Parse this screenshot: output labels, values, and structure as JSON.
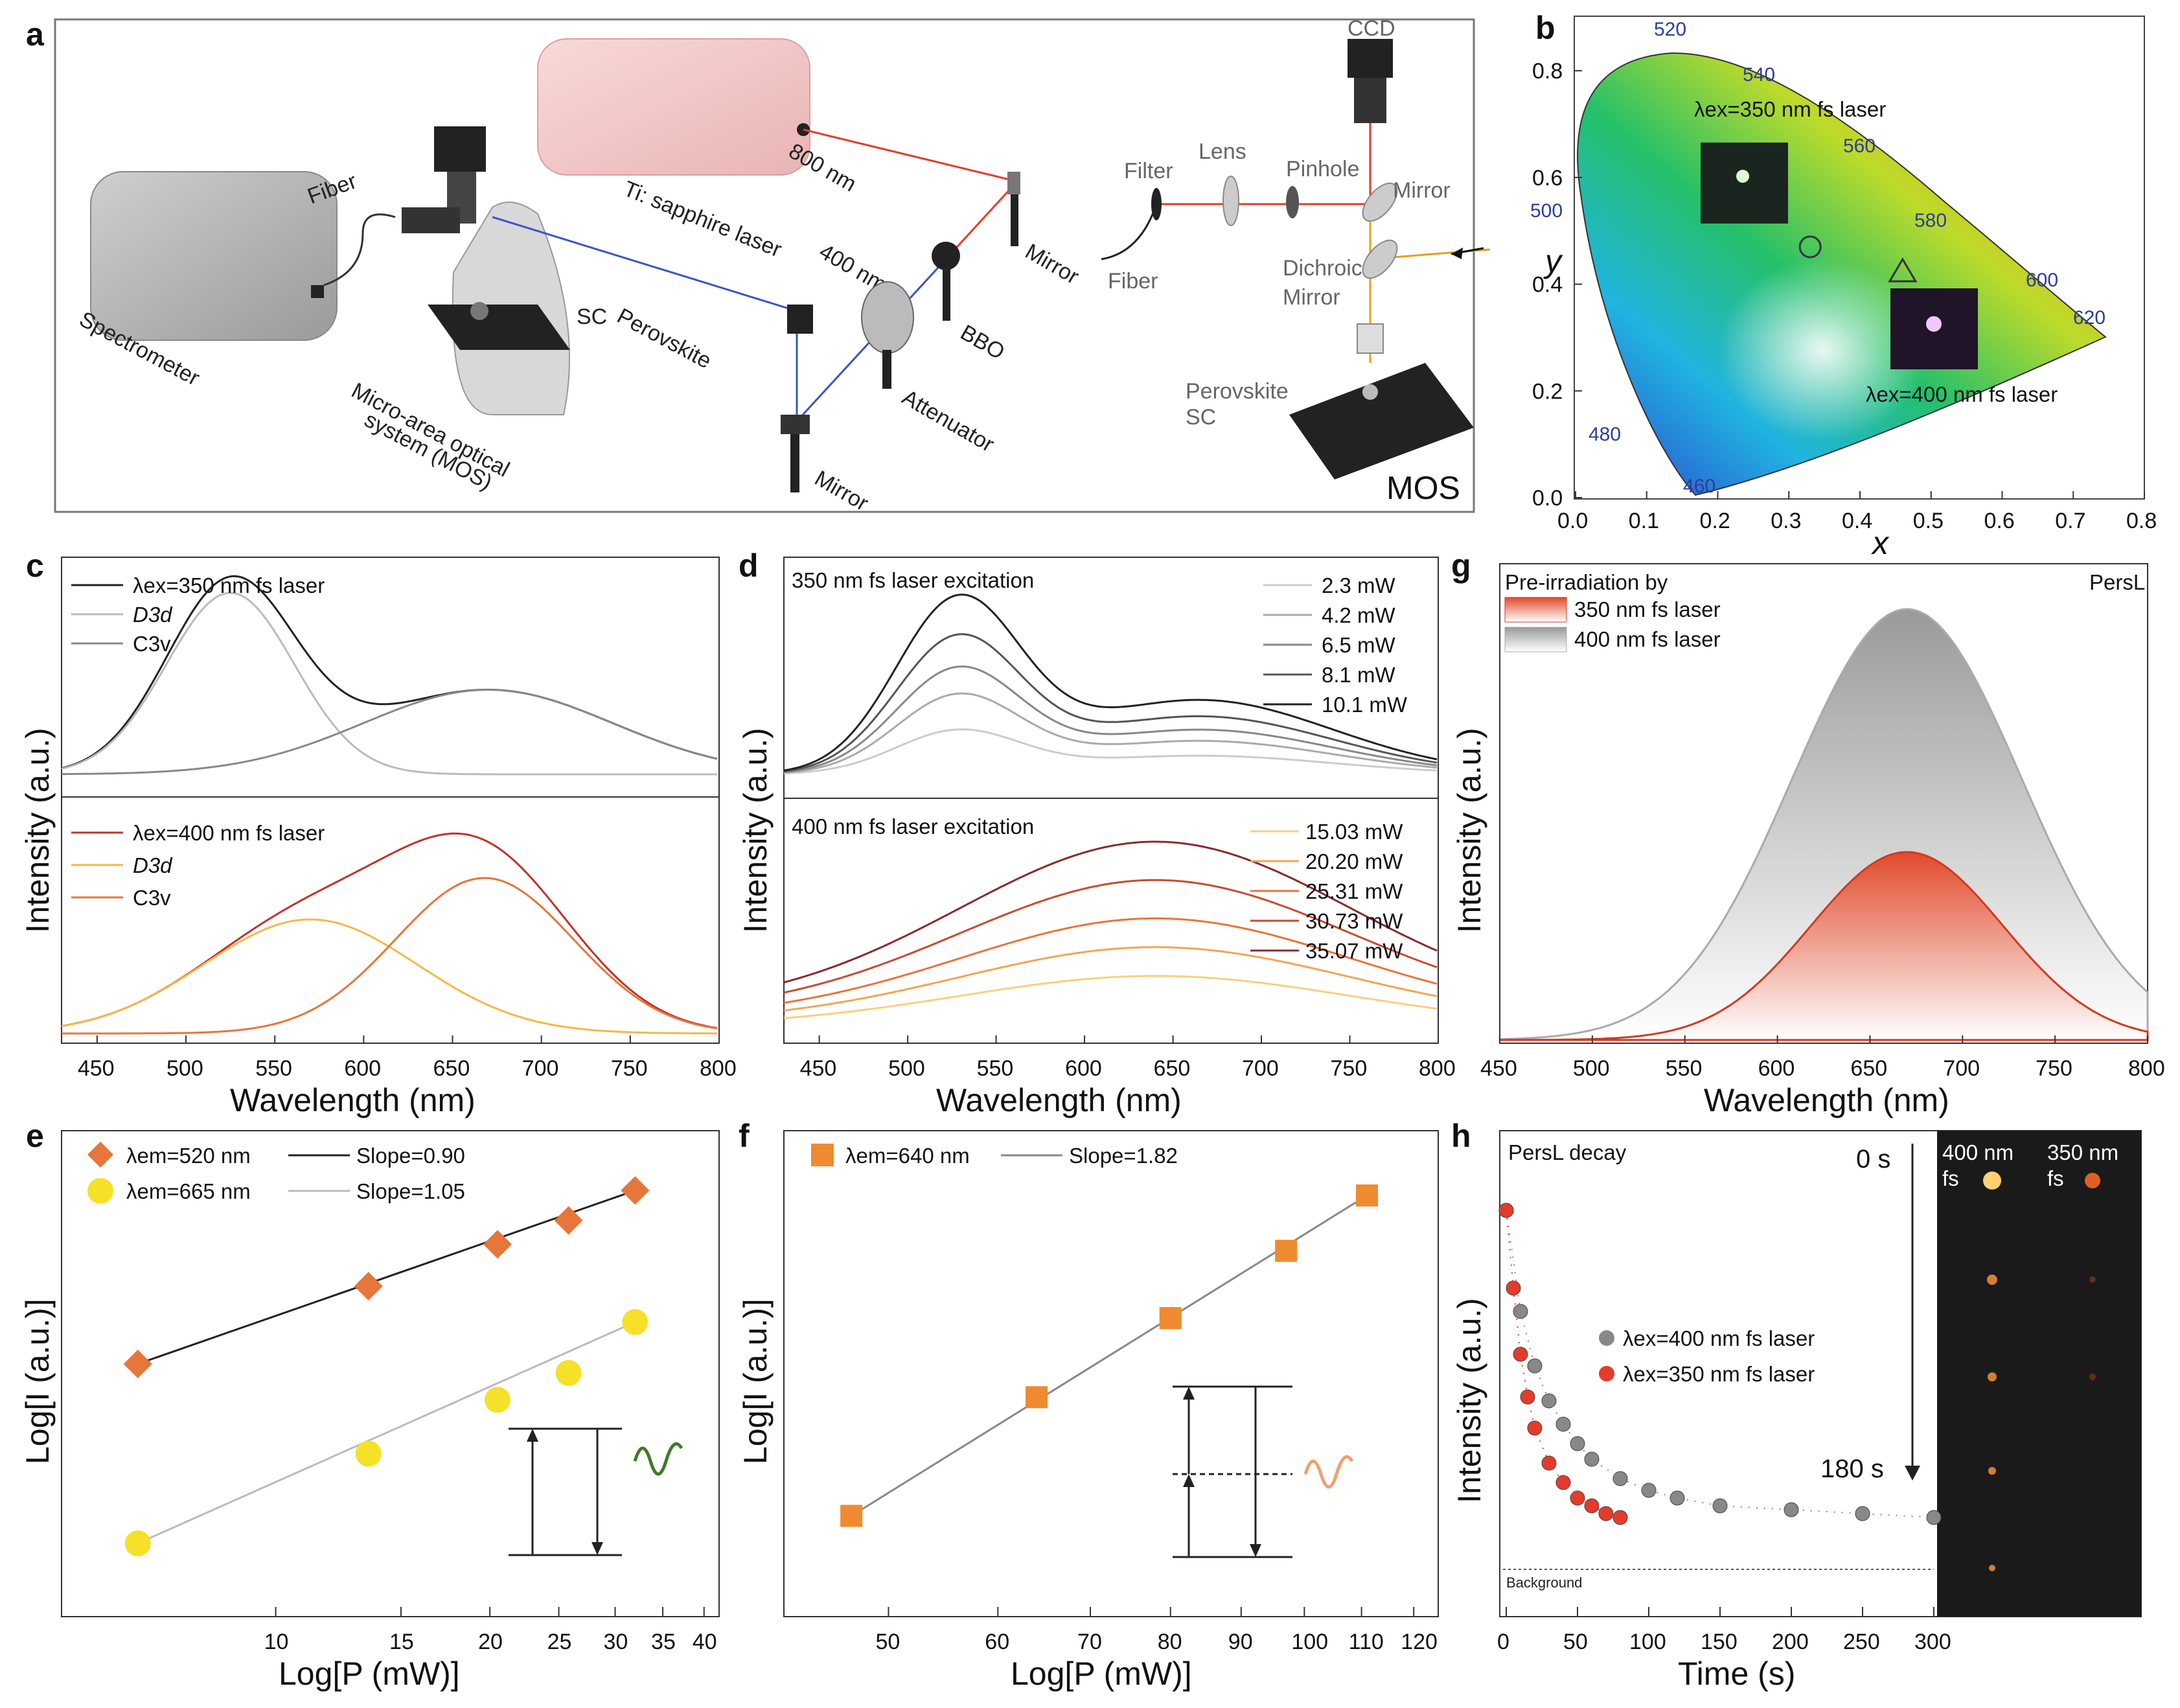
{
  "panels": {
    "a": {
      "letter": "a",
      "labels": {
        "laser": "Ti: sapphire laser",
        "nm800": "800 nm",
        "nm400": "400 nm",
        "mirror1": "Mirror",
        "bbo": "BBO",
        "attenuator": "Attenuator",
        "mirror2": "Mirror",
        "fiber": "Fiber",
        "spectrometer": "Spectrometer",
        "perovskite": "Perovskite",
        "sc": "SC",
        "mos_full1": "Micro-area optical",
        "mos_full2": "system (MOS)",
        "ccd": "CCD",
        "filter": "Filter",
        "lens": "Lens",
        "pinhole": "Pinhole",
        "mirror3": "Mirror",
        "fiber2": "Fiber",
        "dichroic1": "Dichroic",
        "dichroic2": "Mirror",
        "perov2a": "Perovskite",
        "perov2b": "SC",
        "mos": "MOS"
      }
    },
    "b": {
      "letter": "b",
      "xlabel": "x",
      "ylabel": "y",
      "xticks": [
        "0.0",
        "0.1",
        "0.2",
        "0.3",
        "0.4",
        "0.5",
        "0.6",
        "0.7",
        "0.8"
      ],
      "yticks": [
        "0.0",
        "0.2",
        "0.4",
        "0.6",
        "0.8"
      ],
      "wavelengths": [
        "460",
        "480",
        "500",
        "520",
        "540",
        "560",
        "580",
        "600",
        "620"
      ],
      "label350": "λex=350 nm fs laser",
      "label400": "λex=400 nm fs laser",
      "point350": {
        "x": 0.33,
        "y": 0.47
      },
      "point400": {
        "x": 0.46,
        "y": 0.42
      }
    },
    "c": {
      "letter": "c",
      "ylabel": "Intensity (a.u.)",
      "xlabel": "Wavelength (nm)",
      "xticks": [
        "450",
        "500",
        "550",
        "600",
        "650",
        "700",
        "750",
        "800"
      ],
      "top_legend": [
        "λex=350 nm fs laser",
        "D3d",
        "C3v"
      ],
      "bottom_legend": [
        "λex=400 nm fs laser",
        "D3d",
        "C3v"
      ]
    },
    "d": {
      "letter": "d",
      "ylabel": "Intensity (a.u.)",
      "xlabel": "Wavelength (nm)",
      "xticks": [
        "450",
        "500",
        "550",
        "600",
        "650",
        "700",
        "750",
        "800"
      ],
      "top_title": "350 nm fs laser excitation",
      "bottom_title": "400 nm fs laser excitation",
      "top_powers": [
        "2.3 mW",
        "4.2 mW",
        "6.5 mW",
        "8.1 mW",
        "10.1 mW"
      ],
      "bottom_powers": [
        "15.03 mW",
        "20.20 mW",
        "25.31 mW",
        "30.73 mW",
        "35.07 mW"
      ]
    },
    "g": {
      "letter": "g",
      "ylabel": "Intensity (a.u.)",
      "xlabel": "Wavelength (nm)",
      "xticks": [
        "450",
        "500",
        "550",
        "600",
        "650",
        "700",
        "750",
        "800"
      ],
      "legend_title": "Pre-irradiation by",
      "legend": [
        "350 nm fs laser",
        "400 nm fs laser"
      ],
      "corner": "PersL"
    },
    "e": {
      "letter": "e",
      "ylabel": "Log[I (a.u.)]",
      "xlabel": "Log[P (mW)]",
      "xticks": [
        "10",
        "15",
        "20",
        "25",
        "30",
        "35",
        "40"
      ],
      "legend": [
        "λem=520 nm",
        "Slope=0.90",
        "λem=665 nm",
        "Slope=1.05"
      ]
    },
    "f": {
      "letter": "f",
      "ylabel": "Log[I (a.u.)]",
      "xlabel": "Log[P (mW)]",
      "xticks": [
        "50",
        "60",
        "70",
        "80",
        "90",
        "100",
        "110",
        "120"
      ],
      "legend": [
        "λem=640 nm",
        "Slope=1.82"
      ]
    },
    "h": {
      "letter": "h",
      "ylabel": "Intensity (a.u.)",
      "xlabel": "Time (s)",
      "xticks": [
        "0",
        "50",
        "100",
        "150",
        "200",
        "250",
        "300"
      ],
      "title": "PersL decay",
      "legend": [
        "λex=400 nm fs laser",
        "λex=350 nm fs laser"
      ],
      "background": "Background",
      "t0": "0 s",
      "t180": "180 s",
      "col400a": "400 nm",
      "col400b": "fs",
      "col350a": "350 nm",
      "col350b": "fs"
    }
  },
  "chart_data": [
    {
      "panel": "e",
      "type": "scatter",
      "xlabel": "Log[P (mW)]",
      "ylabel": "Log[I (a.u.)]",
      "xscale": "log",
      "series": [
        {
          "name": "λem=520 nm",
          "fit_slope": 0.9,
          "x": [
            6.4,
            13.5,
            20.5,
            25.8,
            32.0
          ],
          "y": [
            0.3,
            0.56,
            0.7,
            0.78,
            0.88
          ]
        },
        {
          "name": "λem=665 nm",
          "fit_slope": 1.05,
          "x": [
            6.4,
            13.5,
            20.5,
            25.8,
            32.0
          ],
          "y": [
            -0.3,
            0.0,
            0.18,
            0.27,
            0.44
          ]
        }
      ]
    },
    {
      "panel": "f",
      "type": "scatter",
      "xlabel": "Log[P (mW)]",
      "ylabel": "Log[I (a.u.)]",
      "xscale": "log",
      "series": [
        {
          "name": "λem=640 nm",
          "fit_slope": 1.82,
          "x": [
            47,
            64,
            80,
            97,
            111
          ],
          "y": [
            0.05,
            0.35,
            0.55,
            0.72,
            0.86
          ]
        }
      ]
    },
    {
      "panel": "h",
      "type": "scatter",
      "xlabel": "Time (s)",
      "ylabel": "Intensity (a.u.)",
      "xlim": [
        0,
        300
      ],
      "series": [
        {
          "name": "λex=400 nm fs laser",
          "x": [
            0,
            10,
            20,
            30,
            40,
            50,
            60,
            80,
            100,
            120,
            150,
            200,
            250,
            300
          ],
          "y": [
            0.92,
            0.66,
            0.52,
            0.43,
            0.37,
            0.32,
            0.28,
            0.23,
            0.2,
            0.18,
            0.16,
            0.15,
            0.14,
            0.13
          ]
        },
        {
          "name": "λex=350 nm fs laser",
          "x": [
            0,
            5,
            10,
            15,
            20,
            30,
            40,
            50,
            60,
            70,
            80
          ],
          "y": [
            0.92,
            0.72,
            0.55,
            0.44,
            0.36,
            0.27,
            0.22,
            0.18,
            0.16,
            0.14,
            0.13
          ]
        }
      ]
    }
  ]
}
